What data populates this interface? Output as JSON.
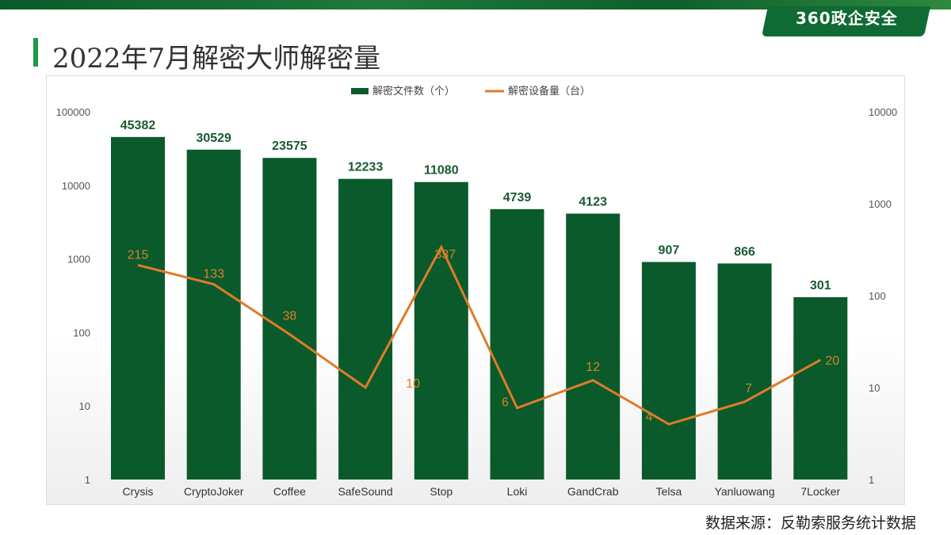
{
  "header": {
    "logo": "360政企安全",
    "title": "2022年7月解密大师解密量"
  },
  "source": "数据来源：反勒索服务统计数据",
  "chart_data": {
    "type": "bar+line",
    "categories": [
      "Crysis",
      "CryptoJoker",
      "Coffee",
      "SafeSound",
      "Stop",
      "Loki",
      "GandCrab",
      "Telsa",
      "Yanluowang",
      "7Locker"
    ],
    "series": [
      {
        "name": "解密文件数（个）",
        "type": "bar",
        "axis": "left",
        "color": "#0a5a2c",
        "values": [
          45382,
          30529,
          23575,
          12233,
          11080,
          4739,
          4123,
          907,
          866,
          301
        ]
      },
      {
        "name": "解密设备量（台）",
        "type": "line",
        "axis": "right",
        "color": "#e07b2a",
        "values": [
          215,
          133,
          38,
          10,
          337,
          6,
          12,
          4,
          7,
          20
        ]
      }
    ],
    "left_axis": {
      "scale": "log",
      "range": [
        1,
        100000
      ],
      "ticks": [
        "1",
        "10",
        "100",
        "1000",
        "10000",
        "100000"
      ]
    },
    "right_axis": {
      "scale": "log",
      "range": [
        1,
        10000
      ],
      "ticks": [
        "1",
        "10",
        "100",
        "1000",
        "10000"
      ]
    },
    "legend": "top",
    "grid": false
  }
}
